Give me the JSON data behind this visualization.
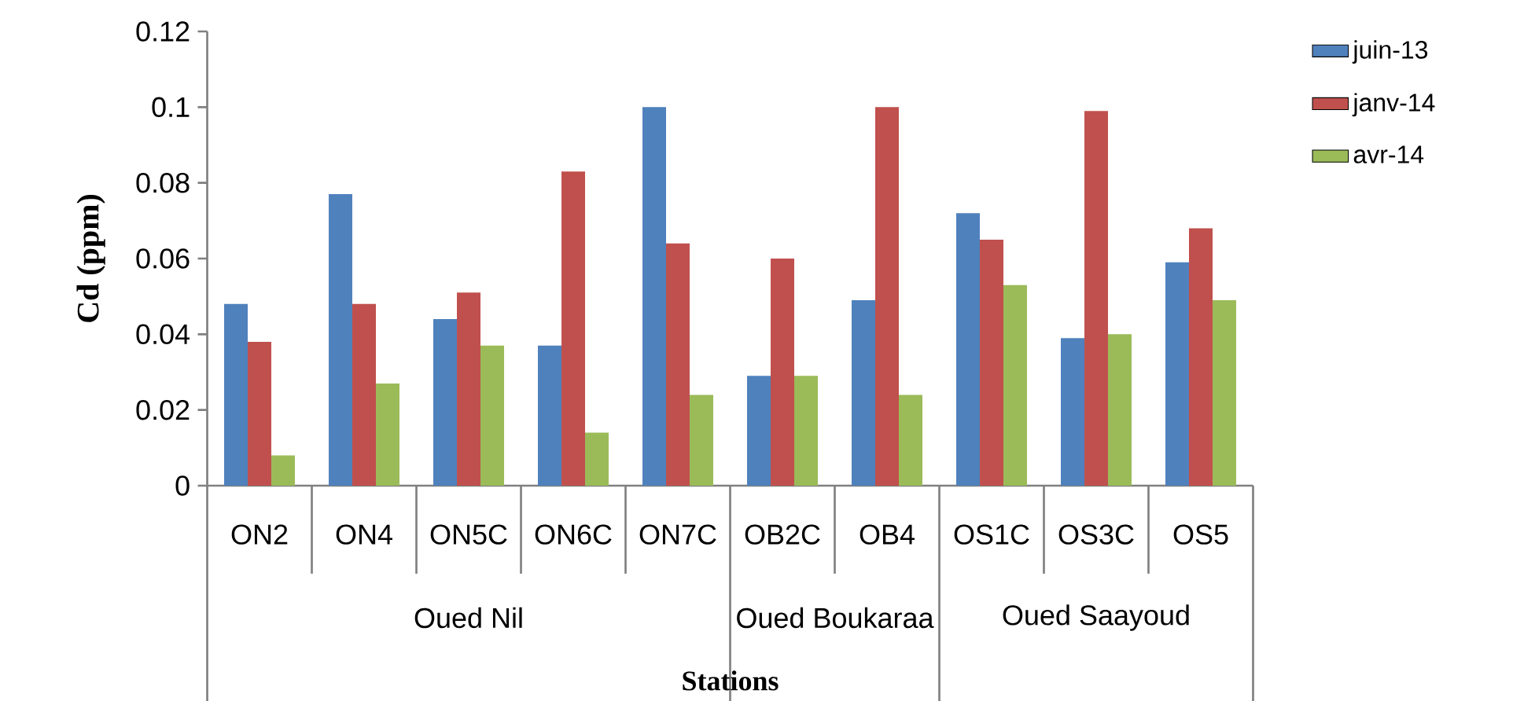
{
  "chart_data": {
    "type": "bar",
    "xlabel": "Stations",
    "ylabel": "Cd (ppm)",
    "categories": [
      "ON2",
      "ON4",
      "ON5C",
      "ON6C",
      "ON7C",
      "OB2C",
      "OB4",
      "OS1C",
      "OS3C",
      "OS5"
    ],
    "annotations": [
      "Oued Nil",
      "Oued Boukaraa",
      "Oued Saayoud"
    ],
    "series": [
      {
        "name": "juin-13",
        "color": "#4f81bd",
        "values": [
          0.048,
          0.077,
          0.044,
          0.037,
          0.1,
          0.029,
          0.049,
          0.072,
          0.039,
          0.059
        ]
      },
      {
        "name": "janv-14",
        "color": "#c0504d",
        "values": [
          0.038,
          0.048,
          0.051,
          0.083,
          0.064,
          0.06,
          0.1,
          0.065,
          0.099,
          0.068
        ]
      },
      {
        "name": "avr-14",
        "color": "#9bbb59",
        "values": [
          0.008,
          0.027,
          0.037,
          0.014,
          0.024,
          0.029,
          0.024,
          0.053,
          0.04,
          0.049
        ]
      }
    ],
    "ylim": [
      0,
      0.12
    ],
    "yticks": [
      0,
      0.02,
      0.04,
      0.06,
      0.08,
      0.1,
      0.12
    ],
    "grid": false,
    "legend": "right"
  }
}
